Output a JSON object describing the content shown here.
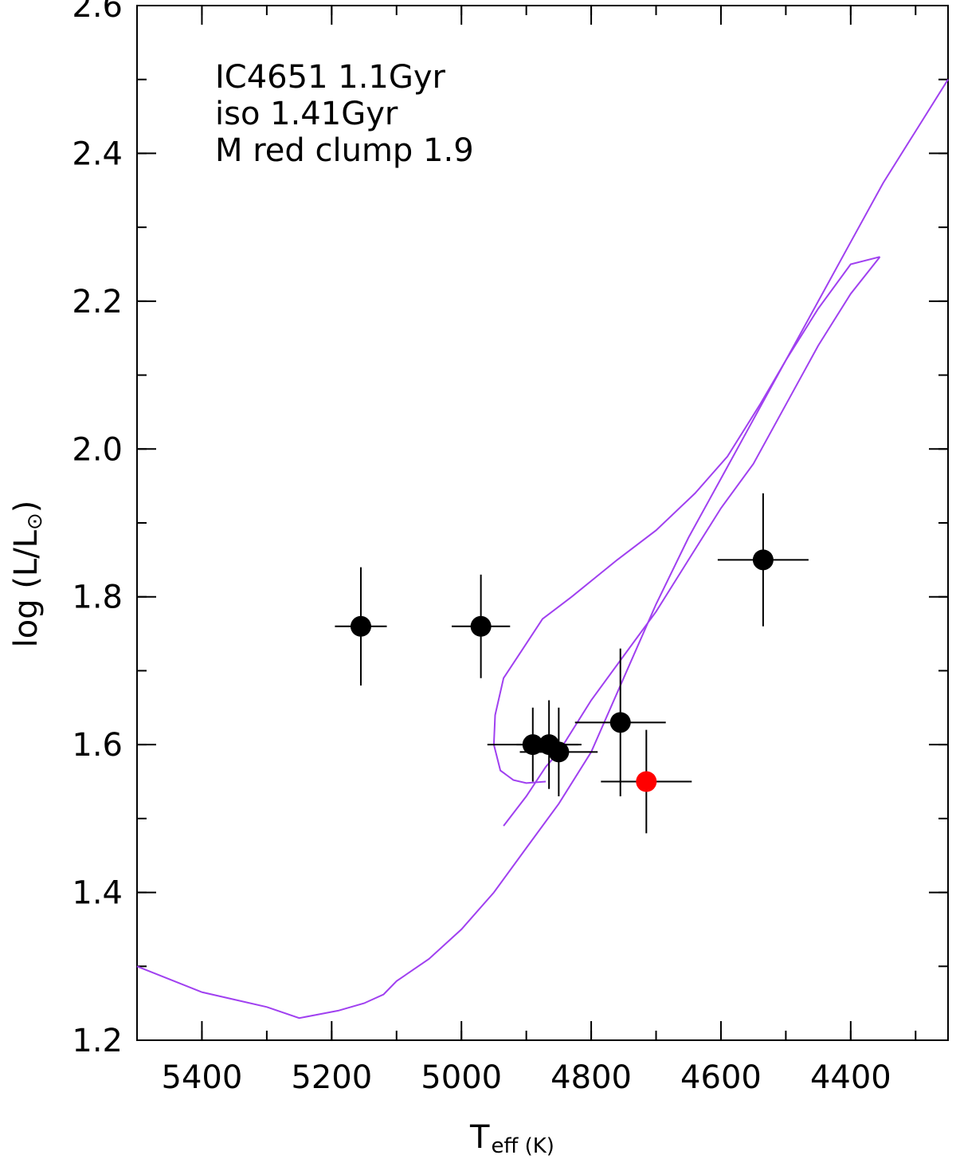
{
  "chart_data": {
    "type": "scatter",
    "title": "",
    "xlabel": "T",
    "xlabel_sub": "eff (K)",
    "ylabel": "log (L/L",
    "ylabel_sub": "⊙",
    "ylabel_close": ")",
    "xlim": [
      5500,
      4250
    ],
    "ylim": [
      1.2,
      2.6
    ],
    "x_ticks": [
      5400,
      5200,
      5000,
      4800,
      4600,
      4400
    ],
    "x_tick_labels": [
      "5400",
      "5200",
      "5000",
      "4800",
      "4600",
      "4400"
    ],
    "x_minor_step": 100,
    "y_ticks": [
      1.2,
      1.4,
      1.6,
      1.8,
      2.0,
      2.2,
      2.4,
      2.6
    ],
    "y_tick_labels": [
      "1.2",
      "1.4",
      "1.6",
      "1.8",
      "2.0",
      "2.2",
      "2.4",
      "2.6"
    ],
    "y_minor_step": 0.1,
    "annotations": [
      "IC4651 1.1Gyr",
      "iso 1.41Gyr",
      "M red clump 1.9"
    ],
    "colors": {
      "isochrone": "#a040f0",
      "points": "#000000",
      "highlight": "#ff0000"
    },
    "isochrone": {
      "segments": [
        [
          [
            5500,
            1.3
          ],
          [
            5400,
            1.265
          ],
          [
            5350,
            1.255
          ],
          [
            5300,
            1.245
          ],
          [
            5250,
            1.23
          ],
          [
            5190,
            1.24
          ],
          [
            5150,
            1.25
          ],
          [
            5120,
            1.262
          ],
          [
            5100,
            1.28
          ],
          [
            5050,
            1.31
          ],
          [
            5000,
            1.35
          ],
          [
            4950,
            1.4
          ],
          [
            4900,
            1.46
          ],
          [
            4850,
            1.52
          ],
          [
            4800,
            1.59
          ],
          [
            4750,
            1.69
          ],
          [
            4700,
            1.79
          ],
          [
            4650,
            1.88
          ],
          [
            4600,
            1.96
          ],
          [
            4550,
            2.04
          ],
          [
            4500,
            2.12
          ],
          [
            4450,
            2.19
          ],
          [
            4400,
            2.25
          ],
          [
            4355,
            2.26
          ]
        ],
        [
          [
            4355,
            2.26
          ],
          [
            4400,
            2.21
          ],
          [
            4450,
            2.14
          ],
          [
            4500,
            2.06
          ],
          [
            4550,
            1.98
          ],
          [
            4600,
            1.92
          ],
          [
            4650,
            1.85
          ],
          [
            4700,
            1.78
          ],
          [
            4750,
            1.72
          ],
          [
            4800,
            1.66
          ],
          [
            4850,
            1.59
          ],
          [
            4870,
            1.57
          ],
          [
            4900,
            1.53
          ],
          [
            4935,
            1.49
          ]
        ],
        [
          [
            4870,
            1.55
          ],
          [
            4900,
            1.548
          ],
          [
            4920,
            1.552
          ],
          [
            4940,
            1.565
          ],
          [
            4950,
            1.6
          ],
          [
            4948,
            1.64
          ],
          [
            4935,
            1.69
          ],
          [
            4905,
            1.73
          ],
          [
            4875,
            1.77
          ],
          [
            4830,
            1.8
          ],
          [
            4760,
            1.85
          ],
          [
            4700,
            1.89
          ],
          [
            4640,
            1.94
          ],
          [
            4590,
            1.99
          ],
          [
            4540,
            2.06
          ],
          [
            4500,
            2.12
          ],
          [
            4450,
            2.2
          ],
          [
            4400,
            2.28
          ],
          [
            4350,
            2.36
          ],
          [
            4300,
            2.43
          ],
          [
            4250,
            2.5
          ]
        ]
      ]
    },
    "series": [
      {
        "points": [
          {
            "x": 5155,
            "y": 1.76,
            "xerr": 40,
            "yerr": 0.08
          },
          {
            "x": 4970,
            "y": 1.76,
            "xerr": 45,
            "yerr": 0.07
          },
          {
            "x": 4890,
            "y": 1.6,
            "xerr": 70,
            "yerr": 0.05
          },
          {
            "x": 4865,
            "y": 1.6,
            "xerr": 50,
            "yerr": 0.06
          },
          {
            "x": 4850,
            "y": 1.59,
            "xerr": 60,
            "yerr": 0.06
          },
          {
            "x": 4755,
            "y": 1.63,
            "xerr": 70,
            "yerr": 0.1
          },
          {
            "x": 4535,
            "y": 1.85,
            "xerr": 70,
            "yerr": 0.09
          }
        ],
        "color": "#000000"
      },
      {
        "points": [
          {
            "x": 4715,
            "y": 1.55,
            "xerr": 70,
            "yerr": 0.07
          }
        ],
        "color": "#ff0000"
      }
    ],
    "grid": false,
    "legend": "none"
  }
}
